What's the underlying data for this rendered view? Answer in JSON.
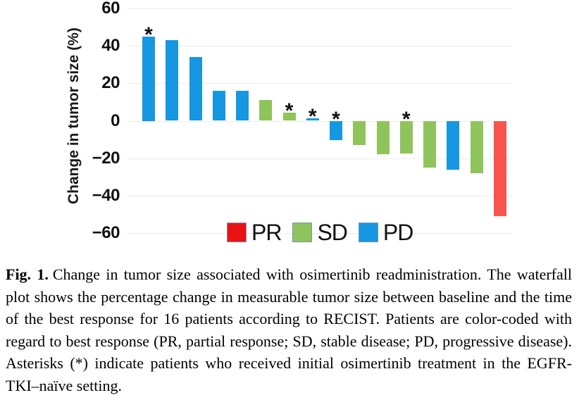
{
  "chart_data": {
    "type": "bar",
    "title": "",
    "xlabel": "",
    "ylabel": "Change in tumor size (%)",
    "ylim": [
      -60,
      60
    ],
    "yticks": [
      60,
      40,
      20,
      0,
      -20,
      -40,
      -60
    ],
    "grid": "horizontal",
    "legend_position": "bottom-center",
    "legend_entries": [
      "PR",
      "SD",
      "PD"
    ],
    "bars": [
      {
        "patient": 1,
        "value": 45,
        "response": "PD",
        "asterisk": true
      },
      {
        "patient": 2,
        "value": 43,
        "response": "PD",
        "asterisk": false
      },
      {
        "patient": 3,
        "value": 34,
        "response": "PD",
        "asterisk": false
      },
      {
        "patient": 4,
        "value": 16,
        "response": "PD",
        "asterisk": false
      },
      {
        "patient": 5,
        "value": 16,
        "response": "PD",
        "asterisk": false
      },
      {
        "patient": 6,
        "value": 11,
        "response": "SD",
        "asterisk": false
      },
      {
        "patient": 7,
        "value": 4.5,
        "response": "SD",
        "asterisk": true
      },
      {
        "patient": 8,
        "value": 1.5,
        "response": "PD",
        "asterisk": true
      },
      {
        "patient": 9,
        "value": -10.5,
        "response": "PD",
        "asterisk": true
      },
      {
        "patient": 10,
        "value": -13,
        "response": "SD",
        "asterisk": false
      },
      {
        "patient": 11,
        "value": -18,
        "response": "SD",
        "asterisk": false
      },
      {
        "patient": 12,
        "value": -17.5,
        "response": "SD",
        "asterisk": true
      },
      {
        "patient": 13,
        "value": -25,
        "response": "SD",
        "asterisk": false
      },
      {
        "patient": 14,
        "value": -26,
        "response": "PD",
        "asterisk": false
      },
      {
        "patient": 15,
        "value": -28,
        "response": "SD",
        "asterisk": false
      },
      {
        "patient": 16,
        "value": -51,
        "response": "PR",
        "asterisk": false
      }
    ],
    "bar_colors": {
      "PR": "#f7554e",
      "SD": "#8fc45c",
      "PD": "#1697e2"
    },
    "legend_swatch_colors": {
      "PR": "#e81312",
      "SD": "#8fc45c",
      "PD": "#1697e2"
    },
    "gridline_color": "#ebebeb",
    "asterisk_symbol": "*"
  },
  "caption": {
    "label": "Fig. 1.",
    "text": "Change in tumor size associated with osimertinib readministration. The waterfall plot shows the percentage change in measurable tumor size between baseline and the time of the best response for 16 patients according to RECIST. Patients are color-coded with regard to best response (PR, partial response; SD, stable disease; PD, progressive disease). Asterisks (*) indicate patients who received initial osimertinib treatment in the EGFR-TKI–naïve setting."
  }
}
